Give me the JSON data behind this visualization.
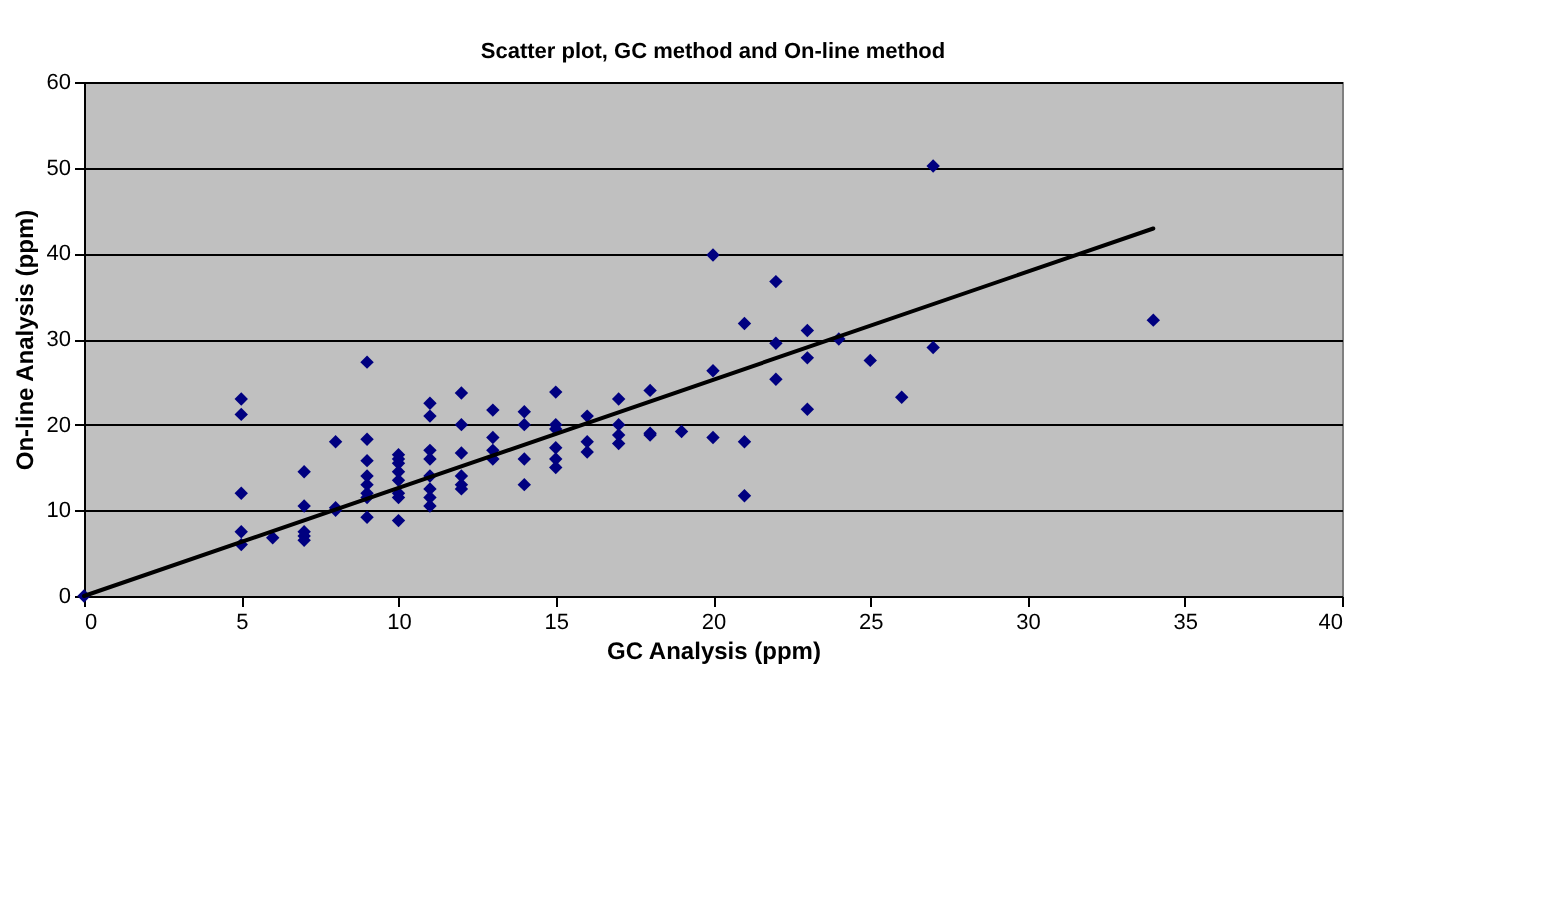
{
  "chart_data": {
    "type": "scatter",
    "title": "Scatter plot,  GC method and On-line method",
    "xlabel": "GC Analysis (ppm)",
    "ylabel": "On-line Analysis (ppm)",
    "xlim": [
      0,
      40
    ],
    "ylim": [
      0,
      60
    ],
    "xticks": [
      0,
      5,
      10,
      15,
      20,
      25,
      30,
      35,
      40
    ],
    "yticks": [
      0,
      10,
      20,
      30,
      40,
      50,
      60
    ],
    "grid": "y",
    "marker": "diamond",
    "series": [
      {
        "color": "#000080",
        "x": [
          0,
          5,
          5,
          5,
          5,
          5,
          6,
          7,
          7,
          7,
          7,
          7,
          8,
          8,
          8,
          9,
          9,
          9,
          9,
          9,
          9,
          9,
          9,
          10,
          10,
          10,
          10,
          10,
          10,
          10,
          10,
          11,
          11,
          11,
          11,
          11,
          11,
          11,
          11,
          12,
          12,
          12,
          12,
          12,
          12,
          13,
          13,
          13,
          13,
          14,
          14,
          14,
          14,
          15,
          15,
          15,
          15,
          15,
          15,
          16,
          16,
          16,
          17,
          17,
          17,
          17,
          18,
          18,
          18,
          19,
          20,
          20,
          20,
          21,
          21,
          21,
          22,
          22,
          22,
          23,
          23,
          23,
          24,
          25,
          26,
          27,
          27,
          34
        ],
        "values": [
          0,
          23,
          21.2,
          12,
          7.5,
          6,
          6.8,
          10.5,
          7.5,
          7,
          6.5,
          14.5,
          18,
          10,
          10.3,
          27.3,
          18.3,
          15.8,
          14,
          13,
          12,
          11.5,
          9.2,
          16.5,
          15.5,
          14.5,
          13.5,
          12,
          11.5,
          8.8,
          16,
          22.5,
          21,
          17,
          16,
          14,
          12.5,
          11.5,
          10.5,
          23.7,
          20,
          16.7,
          14,
          13,
          12.5,
          21.7,
          18.5,
          17,
          16,
          21.5,
          20,
          16,
          13,
          23.8,
          20,
          19.5,
          17.3,
          16,
          15,
          21,
          18,
          16.8,
          23,
          20,
          18.8,
          17.8,
          24,
          19,
          18.8,
          19.2,
          39.8,
          26.3,
          18.5,
          31.8,
          18,
          11.7,
          36.7,
          29.5,
          25.3,
          31,
          27.8,
          21.8,
          30,
          27.5,
          23.2,
          50.2,
          29,
          32.2
        ]
      },
      {
        "type": "line",
        "color": "#000000",
        "x": [
          0,
          34
        ],
        "values": [
          0,
          42.9
        ],
        "line_style": "solid",
        "marker": "none"
      }
    ]
  }
}
